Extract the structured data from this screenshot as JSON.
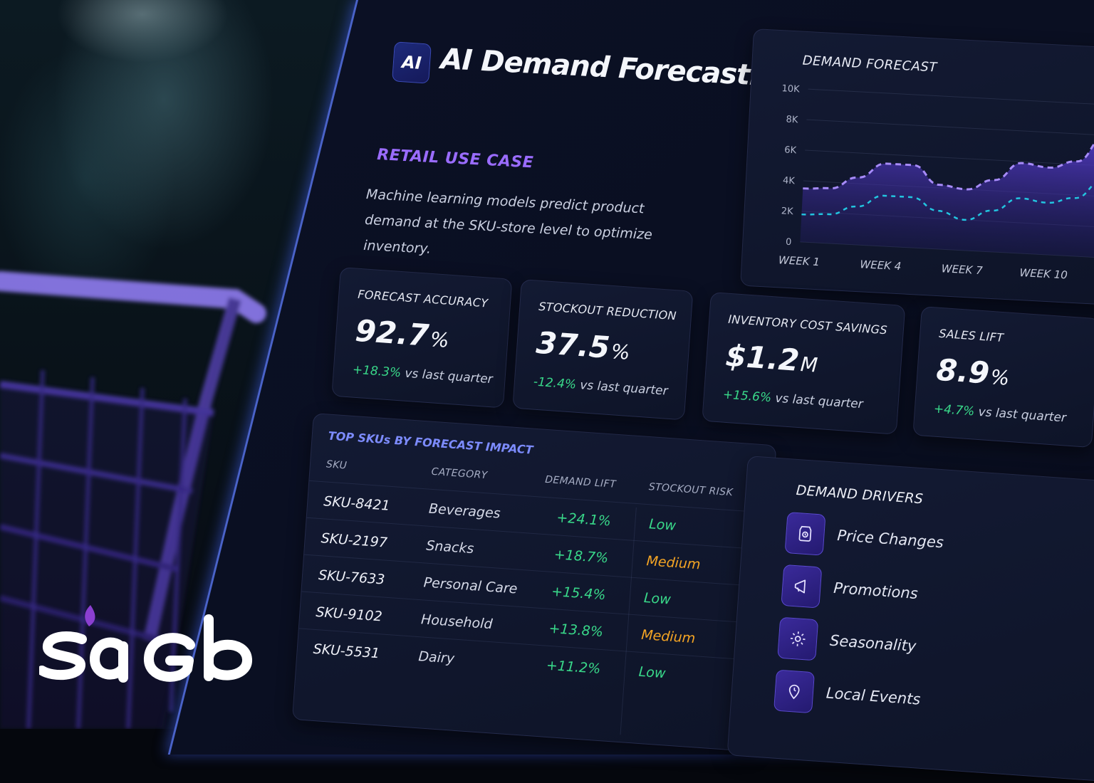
{
  "header": {
    "badge": "AI",
    "title": "AI Demand Forecasting"
  },
  "intro": {
    "tag": "RETAIL USE CASE",
    "description": "Machine learning models predict product demand at the SKU-store level to optimize inventory."
  },
  "chart_data": {
    "type": "area",
    "title": "DEMAND FORECAST",
    "y_ticks": [
      "10K",
      "8K",
      "6K",
      "4K",
      "2K",
      "0"
    ],
    "x_ticks": [
      "WEEK 1",
      "WEEK 4",
      "WEEK 7",
      "WEEK 10"
    ],
    "ylim": [
      0,
      10000
    ],
    "x": [
      1,
      2,
      3,
      4,
      5,
      6,
      7,
      8,
      9,
      10,
      11,
      12
    ],
    "series": [
      {
        "values": [
          3500,
          3600,
          4400,
          5400,
          5400,
          4200,
          4000,
          4700,
          5900,
          5700,
          6200,
          7900
        ]
      },
      {
        "values": [
          1800,
          1900,
          2500,
          3300,
          3300,
          2500,
          2000,
          2700,
          3600,
          3400,
          3800,
          5000
        ]
      }
    ],
    "grid": true,
    "colors": [
      "#a78bfa",
      "#22c5e0"
    ]
  },
  "metrics": [
    {
      "label": "FORECAST ACCURACY",
      "value": "92.7",
      "unit": "%",
      "delta": "+18.3%",
      "delta_text": "vs last quarter"
    },
    {
      "label": "STOCKOUT REDUCTION",
      "value": "37.5",
      "unit": "%",
      "delta": "-12.4%",
      "delta_text": "vs last quarter"
    },
    {
      "label": "INVENTORY COST SAVINGS",
      "value": "$1.2",
      "unit": "M",
      "delta": "+15.6%",
      "delta_text": "vs last quarter"
    },
    {
      "label": "SALES LIFT",
      "value": "8.9",
      "unit": "%",
      "delta": "+4.7%",
      "delta_text": "vs last quarter"
    }
  ],
  "table": {
    "title": "TOP SKUs BY FORECAST IMPACT",
    "columns": [
      "SKU",
      "CATEGORY",
      "DEMAND LIFT",
      "STOCKOUT RISK"
    ],
    "rows": [
      {
        "sku": "SKU-8421",
        "category": "Beverages",
        "lift": "+24.1%",
        "risk": "Low"
      },
      {
        "sku": "SKU-2197",
        "category": "Snacks",
        "lift": "+18.7%",
        "risk": "Medium"
      },
      {
        "sku": "SKU-7633",
        "category": "Personal Care",
        "lift": "+15.4%",
        "risk": "Low"
      },
      {
        "sku": "SKU-9102",
        "category": "Household",
        "lift": "+13.8%",
        "risk": "Medium"
      },
      {
        "sku": "SKU-5531",
        "category": "Dairy",
        "lift": "+11.2%",
        "risk": "Low"
      }
    ]
  },
  "drivers": {
    "title": "DEMAND DRIVERS",
    "items": [
      {
        "label": "Price Changes",
        "icon": "price-tag-icon"
      },
      {
        "label": "Promotions",
        "icon": "megaphone-icon"
      },
      {
        "label": "Seasonality",
        "icon": "gear-icon"
      },
      {
        "label": "Local Events",
        "icon": "location-pin-icon"
      }
    ]
  },
  "brand": {
    "logo": "sago"
  }
}
